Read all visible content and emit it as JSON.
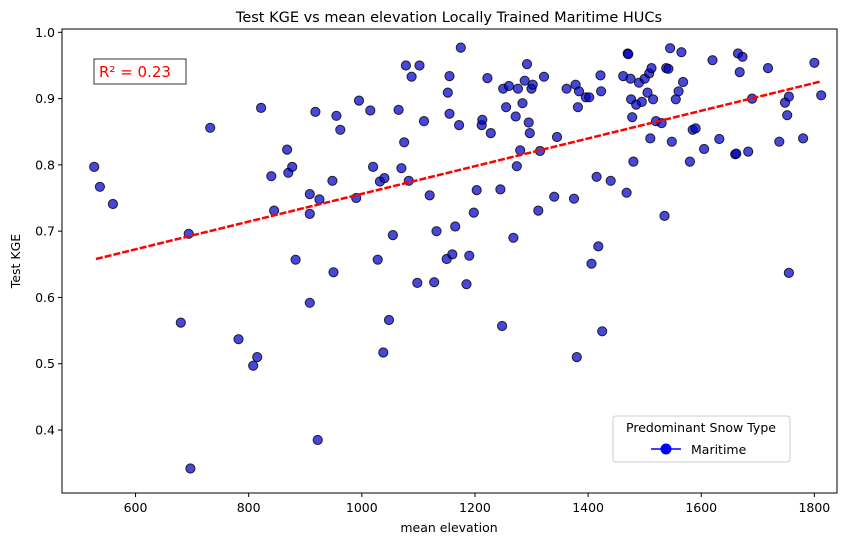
{
  "chart_data": {
    "type": "scatter",
    "title": "Test KGE vs mean elevation Locally Trained Maritime HUCs",
    "xlabel": "mean elevation",
    "ylabel": "Test KGE",
    "xlim": [
      470,
      1840
    ],
    "ylim": [
      0.305,
      1.005
    ],
    "xticks": [
      600,
      800,
      1000,
      1200,
      1400,
      1600,
      1800
    ],
    "yticks": [
      0.4,
      0.5,
      0.6,
      0.7,
      0.8,
      0.9,
      1.0
    ],
    "xtick_labels": [
      "600",
      "800",
      "1000",
      "1200",
      "1400",
      "1600",
      "1800"
    ],
    "ytick_labels": [
      "0.4",
      "0.5",
      "0.6",
      "0.7",
      "0.8",
      "0.9",
      "1.0"
    ],
    "grid": false,
    "point_color": "#0000cc",
    "point_edge_color": "#000000",
    "trend_color": "#ff0000",
    "annotation": {
      "text": "R² = 0.23",
      "color": "#ff0000"
    },
    "legend": {
      "title": "Predominant Snow Type",
      "label": "Maritime",
      "marker_color": "#0000ff",
      "placement": "lower-right"
    },
    "trendline": {
      "x": [
        530,
        1812
      ],
      "y": [
        0.658,
        0.926
      ]
    },
    "series": [
      {
        "name": "Maritime",
        "points": [
          [
            527,
            0.797
          ],
          [
            537,
            0.767
          ],
          [
            560,
            0.741
          ],
          [
            694,
            0.696
          ],
          [
            680,
            0.562
          ],
          [
            697,
            0.342
          ],
          [
            732,
            0.856
          ],
          [
            782,
            0.537
          ],
          [
            808,
            0.497
          ],
          [
            815,
            0.51
          ],
          [
            822,
            0.886
          ],
          [
            840,
            0.783
          ],
          [
            845,
            0.731
          ],
          [
            868,
            0.823
          ],
          [
            870,
            0.788
          ],
          [
            877,
            0.797
          ],
          [
            883,
            0.657
          ],
          [
            908,
            0.756
          ],
          [
            908,
            0.726
          ],
          [
            908,
            0.592
          ],
          [
            918,
            0.88
          ],
          [
            922,
            0.385
          ],
          [
            925,
            0.748
          ],
          [
            948,
            0.776
          ],
          [
            950,
            0.638
          ],
          [
            955,
            0.874
          ],
          [
            962,
            0.853
          ],
          [
            990,
            0.75
          ],
          [
            995,
            0.897
          ],
          [
            1015,
            0.882
          ],
          [
            1020,
            0.797
          ],
          [
            1028,
            0.657
          ],
          [
            1032,
            0.775
          ],
          [
            1038,
            0.517
          ],
          [
            1040,
            0.78
          ],
          [
            1048,
            0.566
          ],
          [
            1055,
            0.694
          ],
          [
            1065,
            0.883
          ],
          [
            1070,
            0.795
          ],
          [
            1075,
            0.834
          ],
          [
            1078,
            0.95
          ],
          [
            1083,
            0.776
          ],
          [
            1088,
            0.933
          ],
          [
            1098,
            0.622
          ],
          [
            1102,
            0.95
          ],
          [
            1110,
            0.866
          ],
          [
            1120,
            0.754
          ],
          [
            1128,
            0.623
          ],
          [
            1132,
            0.7
          ],
          [
            1150,
            0.658
          ],
          [
            1152,
            0.909
          ],
          [
            1155,
            0.877
          ],
          [
            1155,
            0.934
          ],
          [
            1160,
            0.665
          ],
          [
            1165,
            0.707
          ],
          [
            1172,
            0.86
          ],
          [
            1175,
            0.977
          ],
          [
            1185,
            0.62
          ],
          [
            1190,
            0.663
          ],
          [
            1198,
            0.728
          ],
          [
            1203,
            0.762
          ],
          [
            1212,
            0.86
          ],
          [
            1213,
            0.868
          ],
          [
            1222,
            0.931
          ],
          [
            1228,
            0.848
          ],
          [
            1245,
            0.763
          ],
          [
            1248,
            0.557
          ],
          [
            1250,
            0.915
          ],
          [
            1255,
            0.887
          ],
          [
            1260,
            0.919
          ],
          [
            1268,
            0.69
          ],
          [
            1272,
            0.873
          ],
          [
            1274,
            0.798
          ],
          [
            1276,
            0.915
          ],
          [
            1280,
            0.822
          ],
          [
            1284,
            0.893
          ],
          [
            1288,
            0.927
          ],
          [
            1292,
            0.952
          ],
          [
            1295,
            0.864
          ],
          [
            1297,
            0.848
          ],
          [
            1300,
            0.915
          ],
          [
            1302,
            0.921
          ],
          [
            1312,
            0.731
          ],
          [
            1315,
            0.821
          ],
          [
            1322,
            0.933
          ],
          [
            1340,
            0.752
          ],
          [
            1345,
            0.842
          ],
          [
            1362,
            0.915
          ],
          [
            1375,
            0.749
          ],
          [
            1378,
            0.921
          ],
          [
            1380,
            0.51
          ],
          [
            1382,
            0.887
          ],
          [
            1384,
            0.911
          ],
          [
            1396,
            0.902
          ],
          [
            1402,
            0.902
          ],
          [
            1406,
            0.651
          ],
          [
            1415,
            0.782
          ],
          [
            1418,
            0.677
          ],
          [
            1422,
            0.935
          ],
          [
            1423,
            0.911
          ],
          [
            1425,
            0.549
          ],
          [
            1440,
            0.776
          ],
          [
            1462,
            0.934
          ],
          [
            1468,
            0.758
          ],
          [
            1470,
            0.968
          ],
          [
            1471,
            0.967
          ],
          [
            1475,
            0.93
          ],
          [
            1476,
            0.899
          ],
          [
            1478,
            0.872
          ],
          [
            1480,
            0.805
          ],
          [
            1485,
            0.891
          ],
          [
            1490,
            0.924
          ],
          [
            1495,
            0.895
          ],
          [
            1500,
            0.93
          ],
          [
            1505,
            0.909
          ],
          [
            1508,
            0.938
          ],
          [
            1510,
            0.84
          ],
          [
            1512,
            0.946
          ],
          [
            1515,
            0.899
          ],
          [
            1520,
            0.866
          ],
          [
            1530,
            0.863
          ],
          [
            1535,
            0.723
          ],
          [
            1538,
            0.946
          ],
          [
            1542,
            0.945
          ],
          [
            1545,
            0.976
          ],
          [
            1548,
            0.835
          ],
          [
            1555,
            0.899
          ],
          [
            1560,
            0.911
          ],
          [
            1565,
            0.97
          ],
          [
            1568,
            0.925
          ],
          [
            1580,
            0.805
          ],
          [
            1585,
            0.853
          ],
          [
            1590,
            0.855
          ],
          [
            1605,
            0.824
          ],
          [
            1620,
            0.958
          ],
          [
            1632,
            0.839
          ],
          [
            1660,
            0.816
          ],
          [
            1662,
            0.817
          ],
          [
            1665,
            0.968
          ],
          [
            1668,
            0.94
          ],
          [
            1673,
            0.963
          ],
          [
            1683,
            0.82
          ],
          [
            1690,
            0.9
          ],
          [
            1718,
            0.946
          ],
          [
            1738,
            0.835
          ],
          [
            1748,
            0.894
          ],
          [
            1752,
            0.875
          ],
          [
            1755,
            0.903
          ],
          [
            1755,
            0.637
          ],
          [
            1780,
            0.84
          ],
          [
            1800,
            0.954
          ],
          [
            1812,
            0.905
          ]
        ]
      }
    ]
  }
}
